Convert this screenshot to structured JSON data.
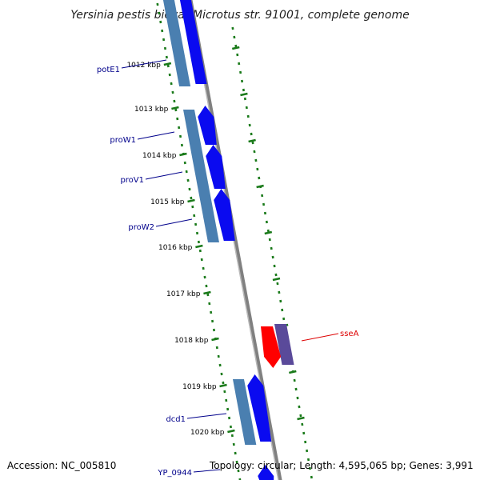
{
  "title": "Yersinia pestis biovar Microtus str. 91001, complete genome",
  "footer": {
    "accession": "Accession: NC_005810",
    "topology": "Topology: circular; Length: 4,595,065 bp; Genes: 3,991"
  },
  "colors": {
    "backbone": "#808080",
    "tick": "#1a7a1a",
    "cds_forward": "#4a7fb0",
    "gene_forward": "#0a0af0",
    "cds_reverse": "#5a4a9a",
    "gene_reverse": "#ff0000",
    "label_forward": "#00008b",
    "label_reverse": "#dd0000"
  },
  "ticks": [
    "1012 kbp",
    "1013 kbp",
    "1014 kbp",
    "1015 kbp",
    "1016 kbp",
    "1017 kbp",
    "1018 kbp",
    "1019 kbp",
    "1020 kbp"
  ],
  "gene_labels": [
    {
      "text": "potE1",
      "strand": "forward"
    },
    {
      "text": "proW1",
      "strand": "forward"
    },
    {
      "text": "proV1",
      "strand": "forward"
    },
    {
      "text": "proW2",
      "strand": "forward"
    },
    {
      "text": "sseA",
      "strand": "reverse"
    },
    {
      "text": "dcd1",
      "strand": "forward"
    },
    {
      "text": "YP_0944",
      "strand": "forward"
    }
  ]
}
